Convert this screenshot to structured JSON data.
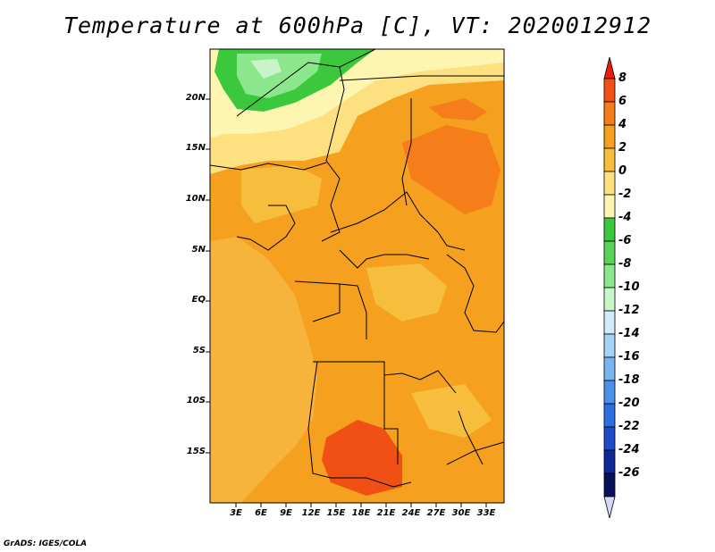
{
  "title": "Temperature at 600hPa [C], VT: 2020012912",
  "credit": "GrADS: IGES/COLA",
  "map": {
    "lat_labels": [
      "20N",
      "15N",
      "10N",
      "5N",
      "EQ",
      "5S",
      "10S",
      "15S"
    ],
    "lon_labels": [
      "3E",
      "6E",
      "9E",
      "12E",
      "15E",
      "18E",
      "21E",
      "24E",
      "27E",
      "30E",
      "33E"
    ]
  },
  "colorbar": {
    "labels": [
      "8",
      "6",
      "4",
      "2",
      "0",
      "-2",
      "-4",
      "-6",
      "-8",
      "-10",
      "-12",
      "-14",
      "-16",
      "-18",
      "-20",
      "-22",
      "-24",
      "-26"
    ],
    "colors": [
      "#e81e0a",
      "#f05014",
      "#f57d1a",
      "#f5a01e",
      "#f7bd3c",
      "#fde080",
      "#fdf5b0",
      "#3cc83c",
      "#5ad25a",
      "#8ce68c",
      "#c8f5c8",
      "#d2ebfa",
      "#a5d2f5",
      "#78b4f0",
      "#4b91eb",
      "#2d6ee1",
      "#1e4bc8",
      "#0f2896",
      "#08105a",
      "#d7d7f7"
    ]
  },
  "colors": {
    "background": "#ffffff",
    "map_base": "#f5a01e",
    "map_ocean": "#f7b43c"
  }
}
